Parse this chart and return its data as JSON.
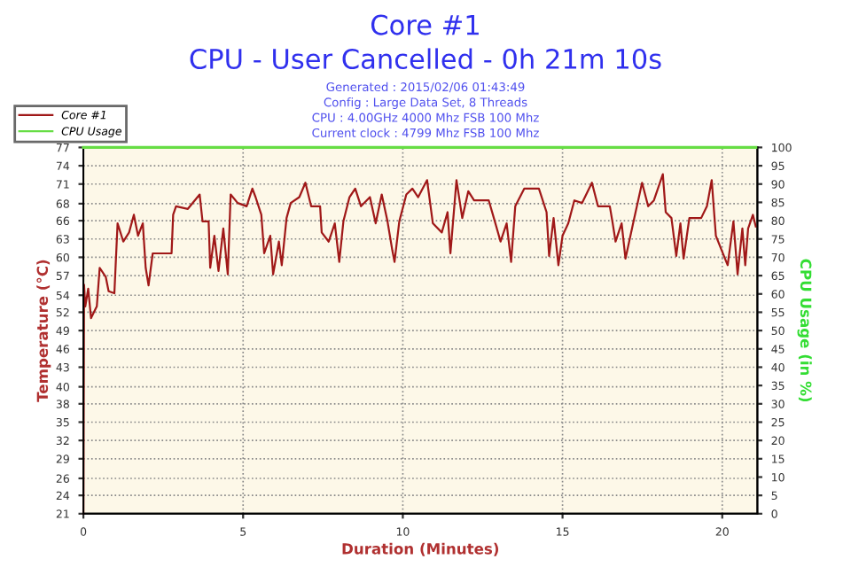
{
  "chart_data": {
    "type": "line",
    "title": "Core #1",
    "subtitle": "CPU - User Cancelled - 0h 21m 10s",
    "annotations": [
      "Generated : 2015/02/06 01:43:49",
      "Config : Large Data Set, 8 Threads",
      "CPU : 4.00GHz 4000 Mhz FSB 100 Mhz",
      "Current clock : 4799 Mhz FSB 100 Mhz"
    ],
    "xlabel": "Duration (Minutes)",
    "ylabel": "Temperature (°C)",
    "y2label": "CPU Usage (in %)",
    "series": [
      {
        "name": "Core #1",
        "color": "#a01818",
        "x": [
          0,
          0.02,
          0.06,
          0.15,
          0.24,
          0.42,
          0.51,
          0.7,
          0.79,
          0.97,
          1.01,
          1.07,
          1.25,
          1.43,
          1.58,
          1.71,
          1.86,
          1.95,
          2.04,
          2.17,
          2.76,
          2.81,
          2.9,
          3.27,
          3.64,
          3.73,
          3.92,
          3.97,
          4.1,
          4.23,
          4.38,
          4.52,
          4.61,
          4.83,
          5.11,
          5.29,
          5.39,
          5.57,
          5.66,
          5.85,
          5.94,
          6.12,
          6.21,
          6.36,
          6.49,
          6.76,
          6.95,
          7.13,
          7.41,
          7.46,
          7.68,
          7.87,
          8.01,
          8.14,
          8.33,
          8.51,
          8.69,
          8.97,
          9.15,
          9.34,
          9.52,
          9.67,
          9.74,
          9.89,
          10.11,
          10.3,
          10.48,
          10.76,
          10.94,
          11.22,
          11.4,
          11.49,
          11.68,
          11.86,
          12.05,
          12.23,
          12.69,
          12.88,
          13.06,
          13.25,
          13.39,
          13.52,
          13.8,
          14.08,
          14.26,
          14.5,
          14.58,
          14.72,
          14.87,
          15.0,
          15.18,
          15.37,
          15.61,
          15.92,
          16.11,
          16.48,
          16.57,
          16.66,
          16.85,
          16.97,
          17.21,
          17.49,
          17.68,
          17.86,
          18.14,
          18.23,
          18.41,
          18.56,
          18.69,
          18.79,
          18.97,
          19.34,
          19.52,
          19.67,
          19.8,
          19.98,
          20.17,
          20.35,
          20.48,
          20.63,
          20.72,
          20.81,
          20.96,
          21.05
        ],
        "values": [
          21,
          56,
          52.7,
          55.4,
          50.9,
          52.7,
          58.6,
          57.2,
          55,
          54.7,
          59,
          65.4,
          62.6,
          64,
          66.7,
          63.5,
          65.4,
          58.6,
          55.9,
          60.8,
          60.8,
          66.7,
          68,
          67.6,
          69.8,
          65.7,
          65.7,
          58.6,
          63.5,
          58.1,
          64.6,
          57.6,
          69.8,
          68.5,
          68,
          70.7,
          69.4,
          66.7,
          60.8,
          63.5,
          57.6,
          62.6,
          59,
          66.2,
          68.5,
          69.4,
          71.6,
          68,
          68,
          64,
          62.6,
          65.4,
          59.5,
          65.7,
          69.4,
          70.7,
          68,
          69.4,
          65.4,
          69.8,
          65.7,
          61.3,
          59.5,
          65.7,
          69.8,
          70.7,
          69.4,
          72,
          65.4,
          64,
          67.1,
          60.8,
          72,
          66.2,
          70.3,
          68.9,
          68.9,
          65.7,
          62.6,
          65.4,
          59.5,
          68,
          70.7,
          70.7,
          70.7,
          67.1,
          60.4,
          66.2,
          59,
          63.5,
          65.4,
          68.9,
          68.5,
          71.6,
          68,
          68,
          65.4,
          62.6,
          65.4,
          60,
          65.4,
          71.6,
          68,
          68.9,
          72.9,
          67.1,
          66.2,
          60.4,
          65.4,
          60,
          66.2,
          66.2,
          68,
          72,
          63.5,
          61.3,
          59,
          65.7,
          57.6,
          64.6,
          59,
          64.6,
          66.7,
          64.9
        ]
      },
      {
        "name": "CPU Usage",
        "color": "#66dd44",
        "axis": "y2",
        "x": [
          0,
          21.05
        ],
        "values": [
          100,
          100
        ]
      }
    ],
    "xlim": [
      0,
      21.1
    ],
    "xticks": [
      0,
      5,
      10,
      15,
      20
    ],
    "ylim": [
      21,
      77
    ],
    "yticks": [
      21,
      {
        "value": 23.8,
        "label": "24"
      },
      {
        "value": 26.4,
        "label": "26"
      },
      {
        "value": 29.4,
        "label": "29"
      },
      {
        "value": 32.2,
        "label": "32"
      },
      35,
      {
        "value": 37.8,
        "label": "38"
      },
      {
        "value": 40.4,
        "label": "40"
      },
      {
        "value": 43.4,
        "label": "43"
      },
      {
        "value": 46.2,
        "label": "46"
      },
      49,
      {
        "value": 51.8,
        "label": "52"
      },
      {
        "value": 54.4,
        "label": "54"
      },
      {
        "value": 57.4,
        "label": "57"
      },
      {
        "value": 60.2,
        "label": "60"
      },
      63,
      {
        "value": 65.8,
        "label": "66"
      },
      {
        "value": 68.4,
        "label": "68"
      },
      {
        "value": 71.4,
        "label": "71"
      },
      {
        "value": 74.2,
        "label": "74"
      },
      77
    ],
    "y2lim": [
      0,
      100
    ],
    "y2ticks": [
      0,
      5,
      10,
      15,
      20,
      25,
      30,
      35,
      40,
      45,
      50,
      55,
      60,
      65,
      70,
      75,
      80,
      85,
      90,
      95,
      100
    ],
    "grid": true,
    "legend": "top left",
    "line_style": "solid",
    "marker": "none"
  }
}
